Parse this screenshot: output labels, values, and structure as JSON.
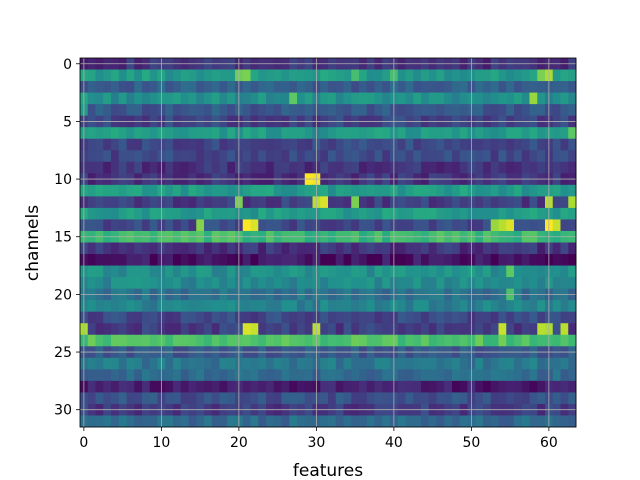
{
  "chart_data": {
    "type": "heatmap",
    "title": "",
    "xlabel": "features",
    "ylabel": "channels",
    "xlim": [
      -0.5,
      63.5
    ],
    "ylim": [
      31.5,
      -0.5
    ],
    "n_cols": 64,
    "n_rows": 32,
    "x_ticks": [
      0,
      10,
      20,
      30,
      40,
      50,
      60
    ],
    "y_ticks": [
      0,
      5,
      10,
      15,
      20,
      25,
      30
    ],
    "grid": true,
    "colormap": "viridis",
    "value_range": [
      0,
      1
    ],
    "row_base_values": [
      0.15,
      0.55,
      0.3,
      0.5,
      0.28,
      0.2,
      0.55,
      0.22,
      0.22,
      0.15,
      0.15,
      0.55,
      0.18,
      0.55,
      0.22,
      0.68,
      0.15,
      0.05,
      0.5,
      0.48,
      0.38,
      0.45,
      0.22,
      0.18,
      0.72,
      0.28,
      0.4,
      0.35,
      0.08,
      0.25,
      0.18,
      0.35
    ],
    "hotspots": [
      {
        "row": 1,
        "col": 20,
        "value": 0.78
      },
      {
        "row": 1,
        "col": 21,
        "value": 0.8
      },
      {
        "row": 1,
        "col": 35,
        "value": 0.7
      },
      {
        "row": 1,
        "col": 40,
        "value": 0.7
      },
      {
        "row": 1,
        "col": 60,
        "value": 0.88
      },
      {
        "row": 1,
        "col": 59,
        "value": 0.8
      },
      {
        "row": 3,
        "col": 27,
        "value": 0.75
      },
      {
        "row": 3,
        "col": 58,
        "value": 0.85
      },
      {
        "row": 10,
        "col": 29,
        "value": 1.0
      },
      {
        "row": 10,
        "col": 30,
        "value": 0.98
      },
      {
        "row": 12,
        "col": 30,
        "value": 0.9
      },
      {
        "row": 12,
        "col": 31,
        "value": 0.95
      },
      {
        "row": 12,
        "col": 20,
        "value": 0.8
      },
      {
        "row": 12,
        "col": 35,
        "value": 0.8
      },
      {
        "row": 12,
        "col": 60,
        "value": 0.9
      },
      {
        "row": 12,
        "col": 63,
        "value": 0.88
      },
      {
        "row": 14,
        "col": 21,
        "value": 1.0
      },
      {
        "row": 14,
        "col": 22,
        "value": 0.95
      },
      {
        "row": 14,
        "col": 55,
        "value": 0.95
      },
      {
        "row": 14,
        "col": 54,
        "value": 0.9
      },
      {
        "row": 14,
        "col": 60,
        "value": 1.0
      },
      {
        "row": 14,
        "col": 61,
        "value": 0.92
      },
      {
        "row": 14,
        "col": 15,
        "value": 0.82
      },
      {
        "row": 14,
        "col": 53,
        "value": 0.85
      },
      {
        "row": 23,
        "col": 21,
        "value": 0.95
      },
      {
        "row": 23,
        "col": 22,
        "value": 0.92
      },
      {
        "row": 23,
        "col": 30,
        "value": 0.9
      },
      {
        "row": 23,
        "col": 54,
        "value": 0.92
      },
      {
        "row": 23,
        "col": 59,
        "value": 0.9
      },
      {
        "row": 23,
        "col": 60,
        "value": 0.88
      },
      {
        "row": 23,
        "col": 62,
        "value": 0.9
      },
      {
        "row": 23,
        "col": 0,
        "value": 0.88
      },
      {
        "row": 18,
        "col": 55,
        "value": 0.75
      },
      {
        "row": 20,
        "col": 55,
        "value": 0.72
      },
      {
        "row": 6,
        "col": 30,
        "value": 0.45
      },
      {
        "row": 6,
        "col": 63,
        "value": 0.75
      },
      {
        "row": 3,
        "col": 0,
        "value": 0.6
      },
      {
        "row": 4,
        "col": 0,
        "value": 0.55
      }
    ]
  }
}
